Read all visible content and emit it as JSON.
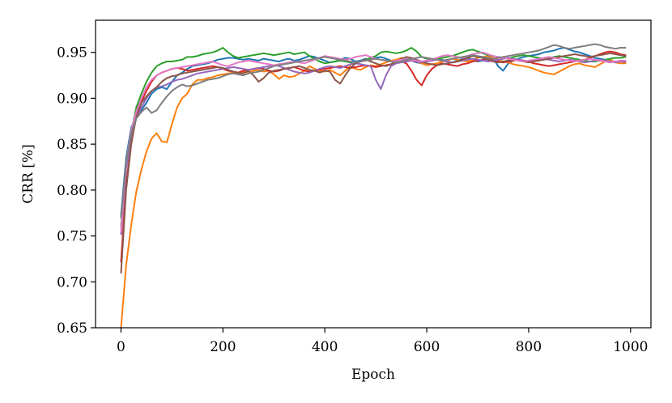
{
  "chart_data": {
    "type": "line",
    "title": "",
    "xlabel": "Epoch",
    "ylabel": "CRR [%]",
    "xlim": [
      -50,
      1040
    ],
    "ylim": [
      0.65,
      0.985
    ],
    "xticks": [
      0,
      200,
      400,
      600,
      800,
      1000
    ],
    "yticks": [
      0.65,
      0.7,
      0.75,
      0.8,
      0.85,
      0.9,
      0.95
    ],
    "xtick_labels": [
      "0",
      "200",
      "400",
      "600",
      "800",
      "1000"
    ],
    "ytick_labels": [
      "0.65",
      "0.70",
      "0.75",
      "0.80",
      "0.85",
      "0.90",
      "0.95"
    ],
    "grid": false,
    "legend": "none",
    "x": [
      0,
      10,
      20,
      30,
      40,
      50,
      60,
      70,
      80,
      90,
      100,
      110,
      120,
      130,
      140,
      150,
      160,
      170,
      180,
      190,
      200,
      210,
      220,
      230,
      240,
      250,
      260,
      270,
      280,
      290,
      300,
      310,
      320,
      330,
      340,
      350,
      360,
      370,
      380,
      390,
      400,
      410,
      420,
      430,
      440,
      450,
      460,
      470,
      480,
      490,
      500,
      510,
      520,
      530,
      540,
      550,
      560,
      570,
      580,
      590,
      600,
      610,
      620,
      630,
      640,
      650,
      660,
      670,
      680,
      690,
      700,
      710,
      720,
      730,
      740,
      750,
      760,
      770,
      780,
      790,
      800,
      810,
      820,
      830,
      840,
      850,
      860,
      870,
      880,
      890,
      900,
      910,
      920,
      930,
      940,
      950,
      960,
      970,
      980,
      990
    ],
    "series": [
      {
        "color": "#1f77b4",
        "values": [
          0.773,
          0.835,
          0.868,
          0.88,
          0.887,
          0.895,
          0.905,
          0.91,
          0.912,
          0.91,
          0.918,
          0.925,
          0.928,
          0.932,
          0.935,
          0.936,
          0.937,
          0.938,
          0.94,
          0.942,
          0.943,
          0.944,
          0.944,
          0.943,
          0.942,
          0.943,
          0.942,
          0.941,
          0.943,
          0.942,
          0.941,
          0.94,
          0.942,
          0.943,
          0.941,
          0.942,
          0.944,
          0.946,
          0.945,
          0.943,
          0.941,
          0.939,
          0.94,
          0.942,
          0.944,
          0.943,
          0.94,
          0.941,
          0.943,
          0.942,
          0.944,
          0.945,
          0.943,
          0.941,
          0.939,
          0.94,
          0.942,
          0.941,
          0.939,
          0.938,
          0.94,
          0.941,
          0.943,
          0.942,
          0.94,
          0.939,
          0.941,
          0.943,
          0.944,
          0.942,
          0.94,
          0.941,
          0.943,
          0.944,
          0.935,
          0.93,
          0.938,
          0.941,
          0.943,
          0.945,
          0.946,
          0.947,
          0.948,
          0.95,
          0.951,
          0.952,
          0.954,
          0.955,
          0.953,
          0.951,
          0.95,
          0.948,
          0.946,
          0.944,
          0.943,
          0.942,
          0.941,
          0.94,
          0.94,
          0.939
        ]
      },
      {
        "color": "#ff7f0e",
        "values": [
          0.65,
          0.718,
          0.762,
          0.798,
          0.822,
          0.842,
          0.856,
          0.862,
          0.853,
          0.852,
          0.872,
          0.89,
          0.9,
          0.905,
          0.915,
          0.92,
          0.92,
          0.922,
          0.923,
          0.925,
          0.926,
          0.927,
          0.928,
          0.926,
          0.929,
          0.928,
          0.93,
          0.931,
          0.929,
          0.93,
          0.926,
          0.921,
          0.925,
          0.923,
          0.924,
          0.927,
          0.93,
          0.935,
          0.932,
          0.93,
          0.929,
          0.931,
          0.928,
          0.925,
          0.93,
          0.935,
          0.932,
          0.931,
          0.934,
          0.936,
          0.935,
          0.937,
          0.939,
          0.941,
          0.942,
          0.944,
          0.943,
          0.941,
          0.94,
          0.938,
          0.936,
          0.937,
          0.938,
          0.94,
          0.941,
          0.943,
          0.942,
          0.941,
          0.94,
          0.942,
          0.944,
          0.945,
          0.946,
          0.944,
          0.942,
          0.94,
          0.939,
          0.937,
          0.936,
          0.935,
          0.934,
          0.932,
          0.93,
          0.928,
          0.927,
          0.926,
          0.929,
          0.932,
          0.935,
          0.937,
          0.938,
          0.936,
          0.935,
          0.934,
          0.937,
          0.94,
          0.942,
          0.939,
          0.938,
          0.938
        ]
      },
      {
        "color": "#2ca02c",
        "values": [
          0.76,
          0.828,
          0.862,
          0.89,
          0.905,
          0.918,
          0.928,
          0.935,
          0.938,
          0.94,
          0.94,
          0.941,
          0.942,
          0.945,
          0.945,
          0.946,
          0.948,
          0.949,
          0.95,
          0.952,
          0.955,
          0.95,
          0.946,
          0.944,
          0.945,
          0.946,
          0.947,
          0.948,
          0.949,
          0.948,
          0.947,
          0.948,
          0.949,
          0.95,
          0.948,
          0.949,
          0.95,
          0.946,
          0.943,
          0.94,
          0.938,
          0.939,
          0.94,
          0.941,
          0.94,
          0.939,
          0.938,
          0.94,
          0.942,
          0.944,
          0.946,
          0.95,
          0.951,
          0.95,
          0.949,
          0.95,
          0.952,
          0.955,
          0.951,
          0.945,
          0.943,
          0.942,
          0.943,
          0.944,
          0.945,
          0.946,
          0.948,
          0.95,
          0.952,
          0.953,
          0.951,
          0.949,
          0.947,
          0.946,
          0.945,
          0.944,
          0.943,
          0.945,
          0.946,
          0.947,
          0.946,
          0.945,
          0.944,
          0.943,
          0.944,
          0.945,
          0.946,
          0.945,
          0.944,
          0.943,
          0.942,
          0.941,
          0.94,
          0.94,
          0.941,
          0.942,
          0.943,
          0.944,
          0.944,
          0.945
        ]
      },
      {
        "color": "#d62728",
        "values": [
          0.722,
          0.806,
          0.85,
          0.882,
          0.896,
          0.908,
          0.918,
          0.925,
          0.928,
          0.93,
          0.932,
          0.933,
          0.932,
          0.93,
          0.931,
          0.932,
          0.933,
          0.934,
          0.935,
          0.934,
          0.932,
          0.93,
          0.929,
          0.928,
          0.93,
          0.931,
          0.932,
          0.933,
          0.932,
          0.93,
          0.929,
          0.93,
          0.932,
          0.933,
          0.934,
          0.932,
          0.93,
          0.929,
          0.93,
          0.931,
          0.932,
          0.933,
          0.934,
          0.935,
          0.934,
          0.933,
          0.934,
          0.935,
          0.936,
          0.935,
          0.934,
          0.935,
          0.936,
          0.937,
          0.938,
          0.94,
          0.938,
          0.93,
          0.92,
          0.914,
          0.925,
          0.932,
          0.936,
          0.938,
          0.937,
          0.936,
          0.935,
          0.937,
          0.938,
          0.94,
          0.941,
          0.942,
          0.944,
          0.942,
          0.94,
          0.939,
          0.94,
          0.941,
          0.942,
          0.941,
          0.94,
          0.938,
          0.937,
          0.936,
          0.935,
          0.936,
          0.937,
          0.938,
          0.939,
          0.94,
          0.941,
          0.942,
          0.944,
          0.946,
          0.948,
          0.95,
          0.951,
          0.95,
          0.948,
          0.947
        ]
      },
      {
        "color": "#9467bd",
        "values": [
          0.752,
          0.823,
          0.855,
          0.878,
          0.89,
          0.9,
          0.908,
          0.912,
          0.913,
          0.915,
          0.918,
          0.92,
          0.921,
          0.923,
          0.925,
          0.927,
          0.928,
          0.929,
          0.93,
          0.931,
          0.932,
          0.933,
          0.934,
          0.933,
          0.932,
          0.931,
          0.932,
          0.933,
          0.934,
          0.935,
          0.936,
          0.935,
          0.933,
          0.931,
          0.929,
          0.928,
          0.927,
          0.928,
          0.93,
          0.932,
          0.934,
          0.935,
          0.934,
          0.933,
          0.935,
          0.937,
          0.938,
          0.937,
          0.936,
          0.935,
          0.92,
          0.91,
          0.925,
          0.935,
          0.938,
          0.939,
          0.94,
          0.941,
          0.94,
          0.939,
          0.94,
          0.941,
          0.942,
          0.941,
          0.94,
          0.939,
          0.94,
          0.941,
          0.942,
          0.943,
          0.942,
          0.941,
          0.94,
          0.941,
          0.942,
          0.943,
          0.944,
          0.943,
          0.942,
          0.941,
          0.94,
          0.941,
          0.942,
          0.943,
          0.942,
          0.941,
          0.94,
          0.941,
          0.942,
          0.941,
          0.94,
          0.939,
          0.94,
          0.941,
          0.942,
          0.941,
          0.94,
          0.939,
          0.94,
          0.94
        ]
      },
      {
        "color": "#8c564b",
        "values": [
          0.71,
          0.8,
          0.85,
          0.88,
          0.895,
          0.902,
          0.908,
          0.912,
          0.918,
          0.922,
          0.924,
          0.925,
          0.927,
          0.928,
          0.929,
          0.93,
          0.931,
          0.932,
          0.933,
          0.934,
          0.933,
          0.931,
          0.929,
          0.928,
          0.927,
          0.93,
          0.925,
          0.918,
          0.922,
          0.928,
          0.93,
          0.931,
          0.932,
          0.933,
          0.934,
          0.935,
          0.933,
          0.931,
          0.93,
          0.928,
          0.93,
          0.929,
          0.92,
          0.916,
          0.925,
          0.933,
          0.938,
          0.94,
          0.942,
          0.94,
          0.938,
          0.936,
          0.935,
          0.937,
          0.94,
          0.943,
          0.945,
          0.944,
          0.942,
          0.94,
          0.938,
          0.937,
          0.936,
          0.937,
          0.938,
          0.939,
          0.94,
          0.942,
          0.944,
          0.946,
          0.945,
          0.944,
          0.942,
          0.94,
          0.939,
          0.94,
          0.941,
          0.942,
          0.941,
          0.94,
          0.939,
          0.94,
          0.941,
          0.942,
          0.943,
          0.944,
          0.945,
          0.946,
          0.947,
          0.948,
          0.947,
          0.946,
          0.945,
          0.946,
          0.947,
          0.948,
          0.949,
          0.948,
          0.947,
          0.946
        ]
      },
      {
        "color": "#e377c2",
        "values": [
          0.755,
          0.83,
          0.865,
          0.885,
          0.9,
          0.912,
          0.92,
          0.925,
          0.928,
          0.93,
          0.932,
          0.933,
          0.934,
          0.935,
          0.936,
          0.937,
          0.938,
          0.939,
          0.94,
          0.938,
          0.936,
          0.935,
          0.937,
          0.939,
          0.94,
          0.941,
          0.94,
          0.939,
          0.938,
          0.937,
          0.936,
          0.937,
          0.938,
          0.939,
          0.94,
          0.939,
          0.938,
          0.94,
          0.942,
          0.944,
          0.946,
          0.945,
          0.944,
          0.943,
          0.942,
          0.943,
          0.945,
          0.946,
          0.947,
          0.945,
          0.943,
          0.942,
          0.941,
          0.94,
          0.941,
          0.942,
          0.943,
          0.942,
          0.941,
          0.94,
          0.941,
          0.942,
          0.944,
          0.946,
          0.947,
          0.946,
          0.945,
          0.944,
          0.946,
          0.948,
          0.949,
          0.95,
          0.948,
          0.946,
          0.945,
          0.944,
          0.943,
          0.942,
          0.941,
          0.94,
          0.941,
          0.942,
          0.943,
          0.944,
          0.945,
          0.944,
          0.943,
          0.942,
          0.941,
          0.94,
          0.941,
          0.942,
          0.943,
          0.942,
          0.941,
          0.94,
          0.939,
          0.94,
          0.941,
          0.941
        ]
      },
      {
        "color": "#7f7f7f",
        "values": [
          0.77,
          0.83,
          0.862,
          0.878,
          0.885,
          0.89,
          0.884,
          0.887,
          0.895,
          0.902,
          0.908,
          0.912,
          0.915,
          0.913,
          0.914,
          0.916,
          0.918,
          0.92,
          0.921,
          0.922,
          0.924,
          0.926,
          0.927,
          0.926,
          0.925,
          0.927,
          0.928,
          0.929,
          0.931,
          0.933,
          0.935,
          0.936,
          0.937,
          0.938,
          0.939,
          0.94,
          0.941,
          0.942,
          0.943,
          0.944,
          0.945,
          0.944,
          0.943,
          0.942,
          0.941,
          0.94,
          0.939,
          0.94,
          0.941,
          0.942,
          0.943,
          0.942,
          0.941,
          0.94,
          0.939,
          0.94,
          0.942,
          0.943,
          0.944,
          0.945,
          0.944,
          0.943,
          0.942,
          0.941,
          0.942,
          0.943,
          0.944,
          0.945,
          0.946,
          0.947,
          0.946,
          0.945,
          0.944,
          0.943,
          0.944,
          0.945,
          0.946,
          0.947,
          0.948,
          0.949,
          0.95,
          0.951,
          0.952,
          0.954,
          0.956,
          0.958,
          0.957,
          0.955,
          0.954,
          0.955,
          0.956,
          0.957,
          0.958,
          0.959,
          0.958,
          0.956,
          0.955,
          0.954,
          0.955,
          0.955
        ]
      }
    ]
  }
}
